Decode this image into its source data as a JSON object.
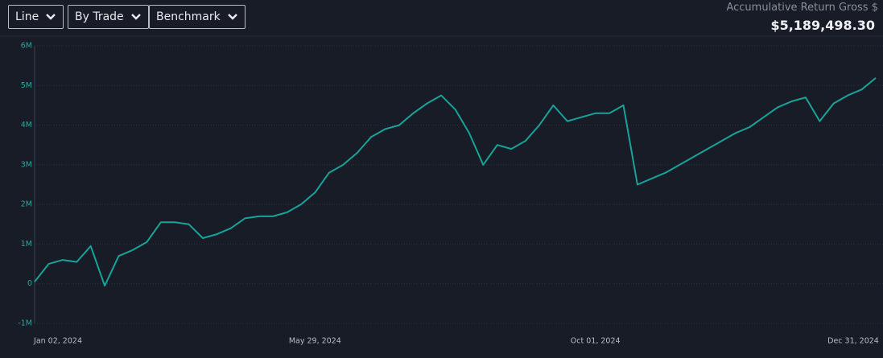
{
  "toolbar": {
    "buttons": [
      "Line",
      "By Trade",
      "Benchmark"
    ]
  },
  "summary": {
    "label": "Accumulative Return Gross $",
    "value": "$5,189,498.30"
  },
  "chart_data": {
    "type": "line",
    "categories": [
      "Jan 02, 2024",
      null,
      null,
      null,
      null,
      null,
      null,
      null,
      null,
      null,
      null,
      null,
      null,
      null,
      null,
      null,
      null,
      null,
      null,
      null,
      "May 29, 2024",
      null,
      null,
      null,
      null,
      null,
      null,
      null,
      null,
      null,
      null,
      null,
      null,
      null,
      null,
      null,
      null,
      null,
      null,
      null,
      "Oct 01, 2024",
      null,
      null,
      null,
      null,
      null,
      null,
      null,
      null,
      null,
      null,
      null,
      null,
      null,
      null,
      null,
      null,
      null,
      null,
      null,
      "Dec 31, 2024"
    ],
    "series": [
      {
        "color": "#17a398",
        "values": [
          50000,
          500000,
          600000,
          550000,
          950000,
          -50000,
          700000,
          850000,
          1050000,
          1550000,
          1550000,
          1500000,
          1150000,
          1250000,
          1400000,
          1650000,
          1700000,
          1700000,
          1800000,
          2000000,
          2300000,
          2800000,
          3000000,
          3300000,
          3700000,
          3900000,
          4000000,
          4300000,
          4550000,
          4750000,
          4400000,
          3800000,
          3000000,
          3500000,
          3400000,
          3600000,
          4000000,
          4500000,
          4100000,
          4200000,
          4300000,
          4300000,
          4500000,
          2500000,
          2650000,
          2800000,
          3000000,
          3200000,
          3400000,
          3600000,
          3800000,
          3950000,
          4200000,
          4450000,
          4600000,
          4700000,
          4100000,
          4550000,
          4750000,
          4900000,
          5189498.3
        ]
      }
    ],
    "ylim": [
      -1000000,
      6000000
    ],
    "yticks": [
      {
        "value": -1000000,
        "label": "-1M"
      },
      0,
      {
        "value": 1000000,
        "label": "1M"
      },
      {
        "value": 2000000,
        "label": "2M"
      },
      {
        "value": 3000000,
        "label": "3M"
      },
      {
        "value": 4000000,
        "label": "4M"
      },
      {
        "value": 5000000,
        "label": "5M"
      },
      {
        "value": 6000000,
        "label": "6M"
      }
    ],
    "grid": true
  }
}
